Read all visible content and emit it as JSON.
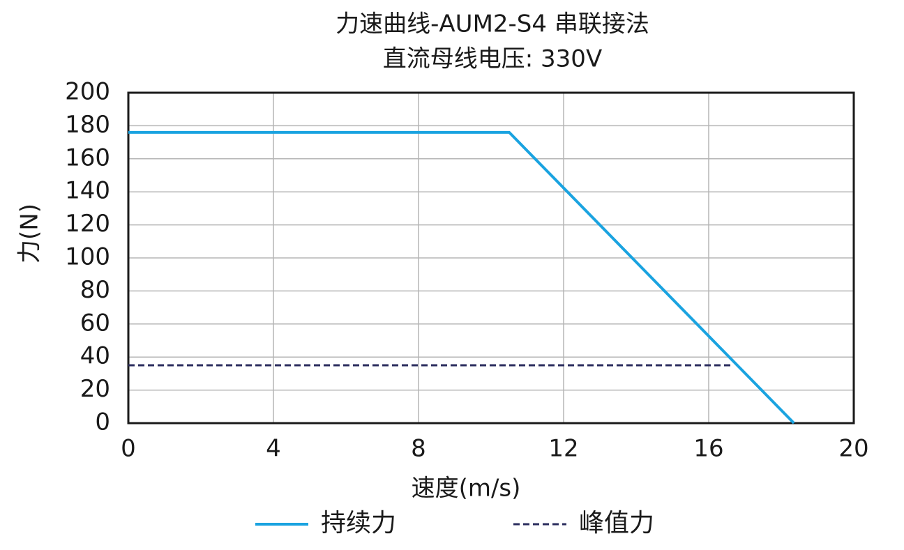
{
  "chart_data": {
    "type": "line",
    "title": "力速曲线-AUM2-S4 串联接法",
    "subtitle": "直流母线电压: 330V",
    "x_label": "速度(m/s)",
    "y_label": "力(N)",
    "xlim": [
      0,
      20
    ],
    "xticks": [
      0,
      4,
      8,
      12,
      16,
      20
    ],
    "ylim": [
      0,
      200
    ],
    "yticks": [
      0,
      20,
      40,
      60,
      80,
      100,
      120,
      140,
      160,
      180,
      200
    ],
    "grid": true,
    "legend": "bottom",
    "series": [
      {
        "name": "持续力",
        "color": "#1aa3e0",
        "dash": false,
        "x": [
          0,
          10.5,
          18.35
        ],
        "values": [
          176,
          176,
          0
        ]
      },
      {
        "name": "峰值力",
        "color": "#2b2d5e",
        "dash": true,
        "x": [
          0,
          16.65
        ],
        "values": [
          35,
          35
        ]
      }
    ]
  }
}
